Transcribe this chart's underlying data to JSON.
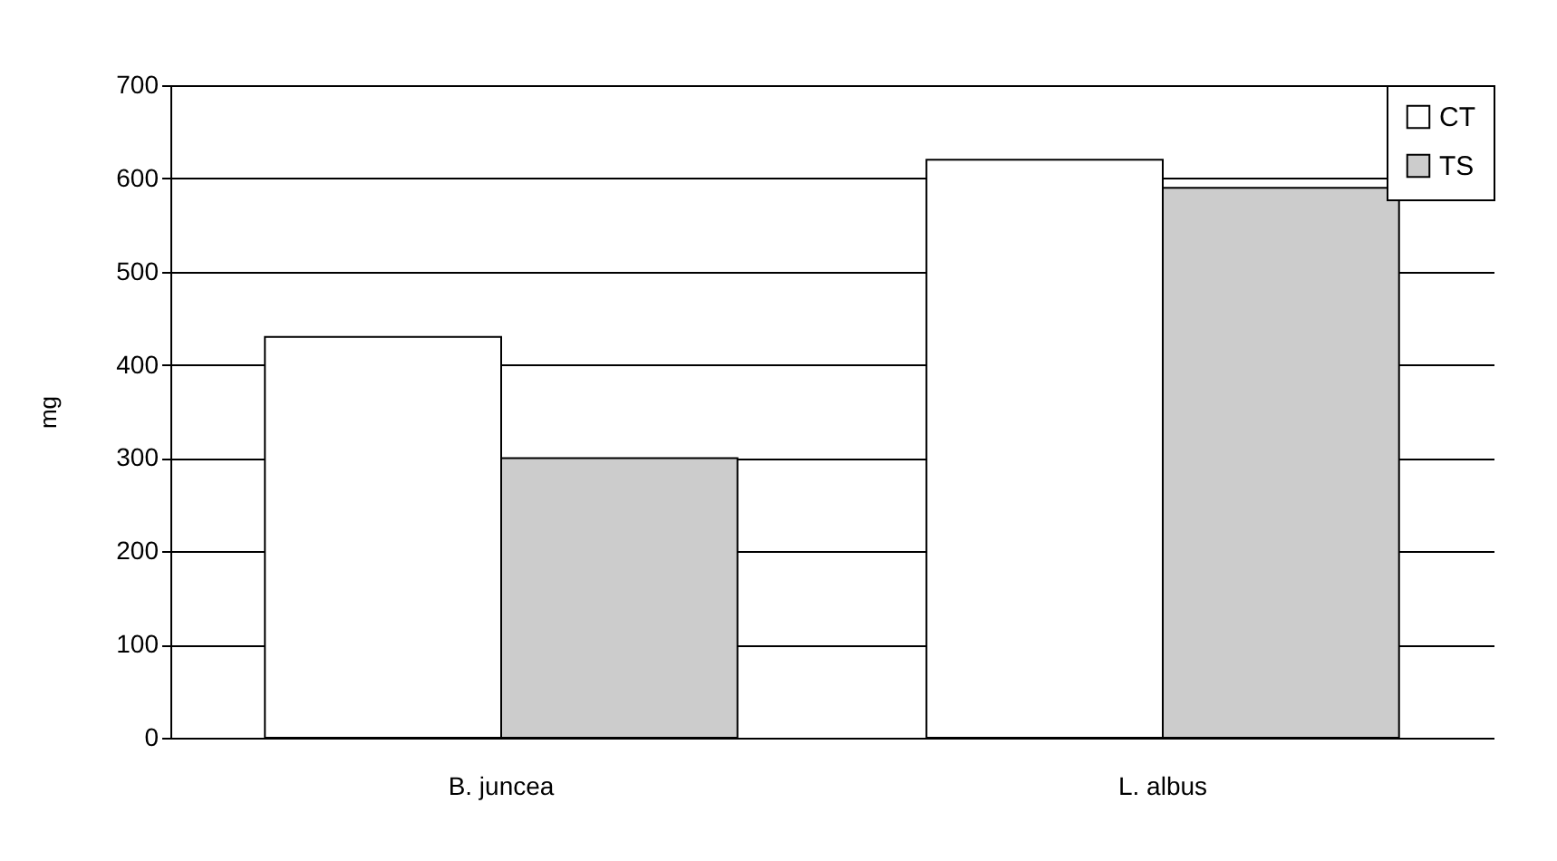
{
  "chart_data": {
    "type": "bar",
    "ylabel": "mg",
    "categories": [
      "B. juncea",
      "L. albus"
    ],
    "series": [
      {
        "name": "CT",
        "color": "#ffffff",
        "values": [
          430,
          620
        ]
      },
      {
        "name": "TS",
        "color": "#cccccc",
        "values": [
          300,
          590
        ]
      }
    ],
    "ylim": [
      0,
      700
    ],
    "yticks": [
      0,
      100,
      200,
      300,
      400,
      500,
      600,
      700
    ],
    "grid": "y",
    "legend": "top right"
  }
}
